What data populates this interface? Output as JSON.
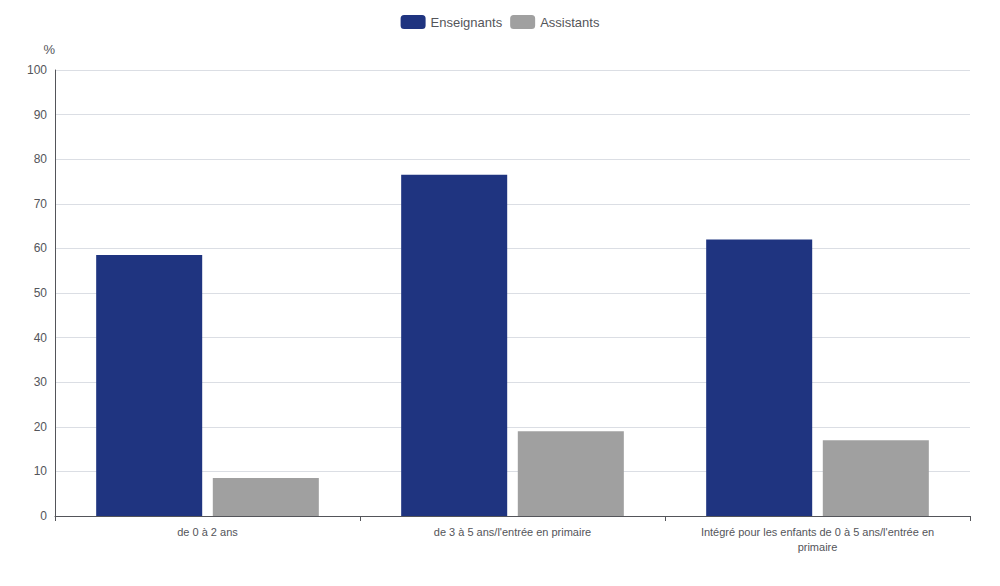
{
  "chart_data": {
    "type": "bar",
    "categories": [
      "de 0 à 2 ans",
      "de 3 à 5 ans/l'entrée en primaire",
      "Intégré pour les enfants de 0 à 5 ans/l'entrée en\nprimaire"
    ],
    "series": [
      {
        "name": "Enseignants",
        "color": "#1F3480",
        "values": [
          58.5,
          76.5,
          62.0
        ]
      },
      {
        "name": "Assistants",
        "color": "#A0A0A0",
        "values": [
          8.5,
          19.0,
          17.0
        ]
      }
    ],
    "ylabel": "%",
    "ylim": [
      0,
      100
    ],
    "yticks": [
      0,
      10,
      20,
      30,
      40,
      50,
      60,
      70,
      80,
      90,
      100
    ],
    "grid": true,
    "legend": "top"
  }
}
